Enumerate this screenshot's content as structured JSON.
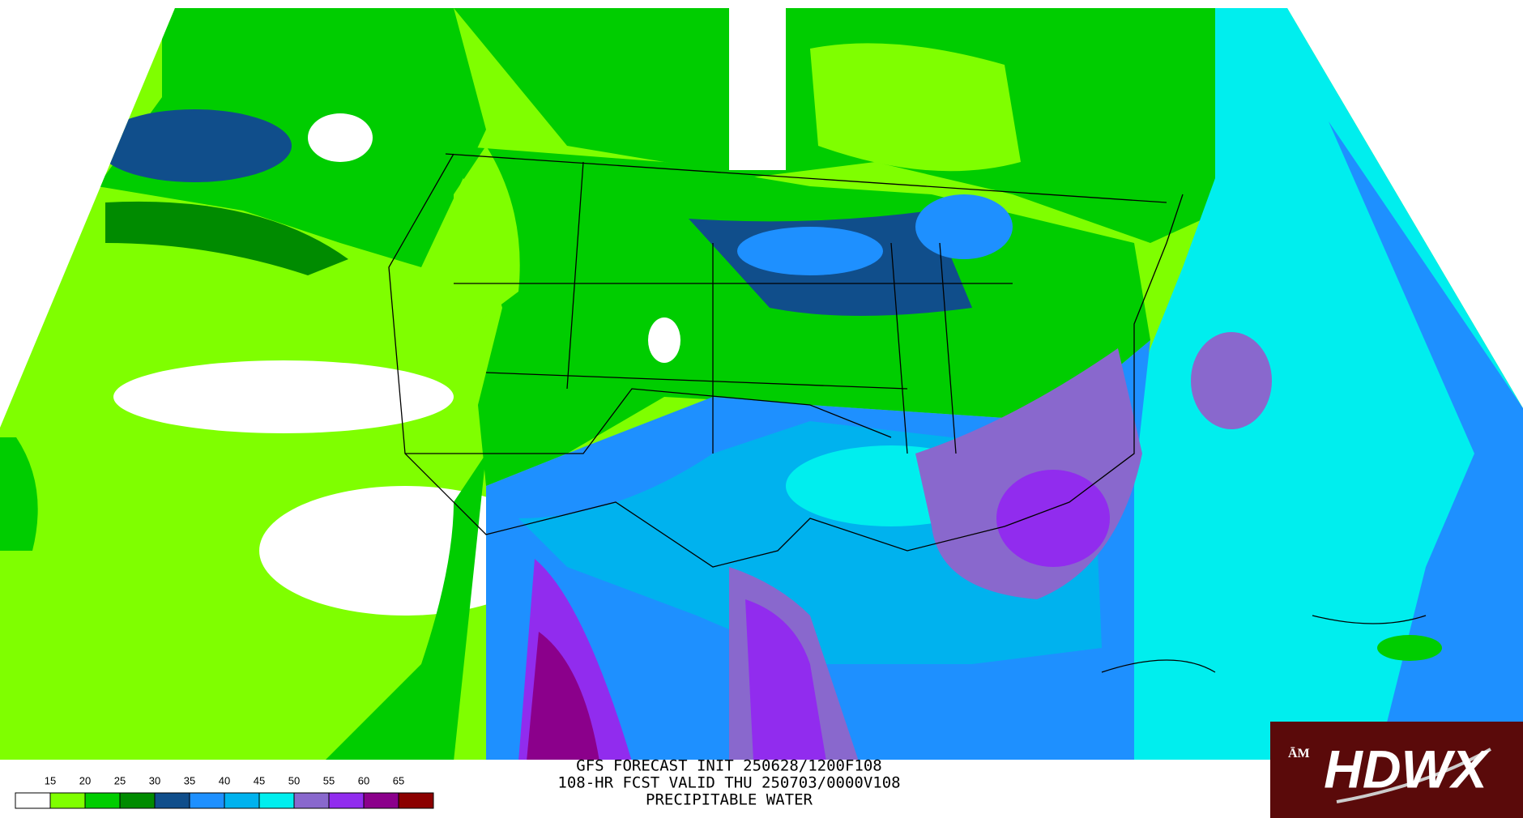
{
  "captions": [
    "GFS FORECAST INIT 250628/1200F108",
    "108-HR FCST VALID THU 250703/0000V108",
    "PRECIPITABLE WATER"
  ],
  "legend": {
    "ticks": [
      15,
      20,
      25,
      30,
      35,
      40,
      45,
      50,
      55,
      60,
      65
    ],
    "colors": [
      "#ffffff",
      "#7fff00",
      "#00cd00",
      "#008b00",
      "#104e8b",
      "#1e90ff",
      "#00b2ee",
      "#00eeee",
      "#8968cd",
      "#912cee",
      "#8b008b",
      "#8b0000"
    ]
  },
  "logo": {
    "badge": "ĀM",
    "title": "HDWX"
  }
}
